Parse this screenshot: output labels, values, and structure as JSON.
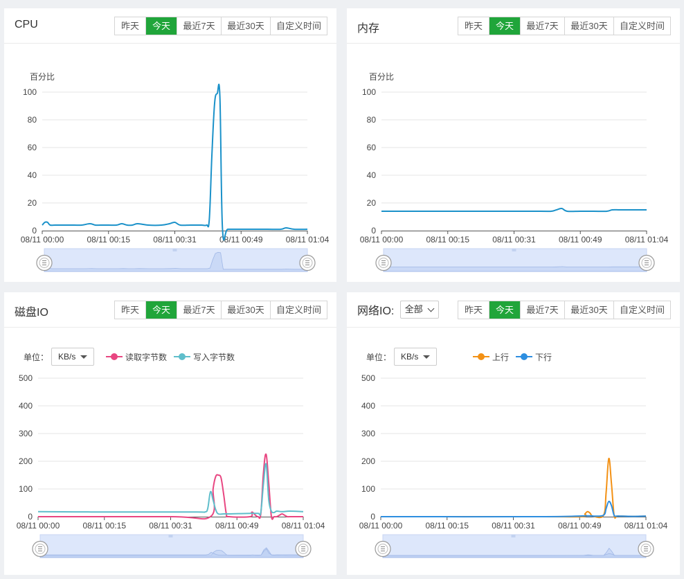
{
  "range_options": [
    "昨天",
    "今天",
    "最近7天",
    "最近30天",
    "自定义时间"
  ],
  "active_range": "今天",
  "colors": {
    "accent": "#20a53a",
    "cpu_line": "#1a91c9",
    "disk_read": "#e84681",
    "disk_write": "#5fbecb",
    "net_up": "#f39115",
    "net_down": "#2d8ee0"
  },
  "panels": {
    "cpu": {
      "title": "CPU",
      "chart_data": {
        "type": "line",
        "ylabel": "百分比",
        "ylim": [
          0,
          100
        ],
        "yticks": [
          "0",
          "20",
          "40",
          "60",
          "80",
          "100"
        ],
        "xticks": [
          "08/11 00:00",
          "08/11 00:15",
          "08/11 00:31",
          "08/11 00:49",
          "08/11 01:04"
        ],
        "series": [
          {
            "name": "CPU",
            "color": "#1a91c9",
            "x": [
              0,
              1,
              2,
              3,
              5,
              8,
              12,
              15,
              18,
              20,
              22,
              25,
              28,
              30,
              32,
              34,
              36,
              40,
              45,
              48,
              50,
              52,
              56,
              60,
              62,
              63,
              64,
              65,
              66,
              67,
              68,
              70,
              75,
              80,
              85,
              90,
              92,
              95,
              100
            ],
            "y": [
              4,
              6,
              6,
              4,
              4,
              4,
              4,
              4,
              5,
              4,
              4,
              4,
              4,
              5,
              4,
              4,
              5,
              4,
              4,
              5,
              6,
              4,
              4,
              4,
              4,
              8,
              55,
              92,
              99,
              97,
              1,
              1,
              1,
              1,
              1,
              1,
              2,
              1,
              1
            ]
          }
        ]
      }
    },
    "memory": {
      "title": "内存",
      "chart_data": {
        "type": "line",
        "ylabel": "百分比",
        "ylim": [
          0,
          100
        ],
        "yticks": [
          "0",
          "20",
          "40",
          "60",
          "80",
          "100"
        ],
        "xticks": [
          "08/11 00:00",
          "08/11 00:15",
          "08/11 00:31",
          "08/11 00:49",
          "08/11 01:04"
        ],
        "series": [
          {
            "name": "内存",
            "color": "#1a91c9",
            "x": [
              0,
              20,
              40,
              60,
              64,
              66,
              68,
              70,
              75,
              80,
              85,
              87,
              90,
              95,
              100
            ],
            "y": [
              14,
              14,
              14,
              14,
              14,
              15,
              16,
              14,
              14,
              14,
              14,
              15,
              15,
              15,
              15
            ]
          }
        ]
      }
    },
    "disk": {
      "title": "磁盘IO",
      "unit_label": "单位：",
      "unit_value": "KB/s",
      "chart_data": {
        "type": "line",
        "ylim": [
          0,
          500
        ],
        "yticks": [
          "0",
          "100",
          "200",
          "300",
          "400",
          "500"
        ],
        "xticks": [
          "08/11 00:00",
          "08/11 00:15",
          "08/11 00:31",
          "08/11 00:49",
          "08/11 01:04"
        ],
        "series": [
          {
            "name": "读取字节数",
            "color": "#e84681",
            "x": [
              0,
              50,
              65,
              66,
              67,
              68,
              69,
              70,
              71,
              72,
              80,
              80.5,
              81,
              82,
              83,
              84,
              85,
              86,
              87,
              88,
              89,
              90,
              91,
              92,
              93,
              94,
              95,
              100
            ],
            "y": [
              0,
              0,
              0,
              100,
              145,
              150,
              140,
              80,
              10,
              0,
              0,
              15,
              15,
              5,
              0,
              10,
              160,
              225,
              120,
              0,
              0,
              0,
              5,
              10,
              5,
              0,
              0,
              0
            ]
          },
          {
            "name": "写入字节数",
            "color": "#5fbecb",
            "x": [
              0,
              20,
              40,
              60,
              63,
              64,
              65,
              66,
              67,
              68,
              70,
              72,
              80,
              83,
              84,
              85,
              86,
              87,
              88,
              89,
              90,
              92,
              95,
              100
            ],
            "y": [
              18,
              17,
              17,
              17,
              17,
              30,
              90,
              60,
              25,
              10,
              10,
              10,
              12,
              12,
              15,
              120,
              190,
              60,
              20,
              15,
              20,
              18,
              20,
              18
            ]
          }
        ]
      }
    },
    "network": {
      "title": "网络IO:",
      "filter_value": "全部",
      "unit_label": "单位：",
      "unit_value": "KB/s",
      "chart_data": {
        "type": "line",
        "ylim": [
          0,
          500
        ],
        "yticks": [
          "0",
          "100",
          "200",
          "300",
          "400",
          "500"
        ],
        "xticks": [
          "08/11 00:00",
          "08/11 00:15",
          "08/11 00:31",
          "08/11 00:49",
          "08/11 01:04"
        ],
        "series": [
          {
            "name": "上行",
            "color": "#f39115",
            "x": [
              0,
              60,
              76,
              77,
              78,
              79,
              80,
              84,
              85,
              86,
              87,
              88,
              89,
              90,
              95,
              100
            ],
            "y": [
              0,
              0,
              0,
              10,
              18,
              12,
              2,
              5,
              90,
              210,
              120,
              5,
              2,
              2,
              1,
              2
            ]
          },
          {
            "name": "下行",
            "color": "#2d8ee0",
            "x": [
              0,
              60,
              78,
              80,
              84,
              85,
              86,
              87,
              88,
              89,
              90,
              95,
              100
            ],
            "y": [
              0,
              0,
              3,
              2,
              5,
              30,
              55,
              40,
              5,
              2,
              2,
              1,
              2
            ]
          }
        ]
      }
    }
  }
}
